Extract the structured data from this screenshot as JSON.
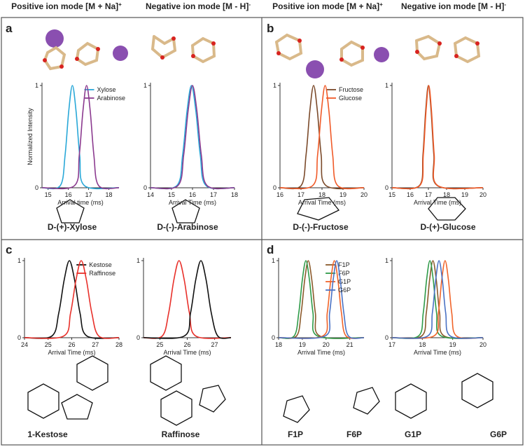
{
  "figure": {
    "headers": [
      {
        "text": "Positive ion mode [M + Na]",
        "sup": "+"
      },
      {
        "text": "Negative ion mode [M - H]",
        "sup": "-"
      },
      {
        "text": "Positive ion mode [M + Na]",
        "sup": "+"
      },
      {
        "text": "Negative ion mode [M - H]",
        "sup": "-"
      }
    ],
    "panel_labels": [
      "a",
      "b",
      "c",
      "d"
    ],
    "molecules": [
      {
        "name": "D-(+)-Xylose",
        "color": "#29a8d8"
      },
      {
        "name": "D-(-)-Arabinose",
        "color": "#8b3a8f"
      },
      {
        "name": "D-(-)-Fructose",
        "color": "#7b4a2a"
      },
      {
        "name": "D-(+)-Glucose",
        "color": "#f05a28"
      },
      {
        "name": "1-Kestose",
        "color": "#111111"
      },
      {
        "name": "Raffinose",
        "color": "#e8302a"
      },
      {
        "name": "F1P",
        "color": "#8b5a2b"
      },
      {
        "name": "F6P",
        "color": "#2e9a48"
      },
      {
        "name": "G1P",
        "color": "#f0642a"
      },
      {
        "name": "G6P",
        "color": "#4a72c4"
      }
    ]
  },
  "chart_data": [
    {
      "type": "line",
      "xlabel": "Arrival time (ms)",
      "ylabel": "Normalized Intensity",
      "xlim": [
        14.7,
        18.5
      ],
      "xticks": [
        15,
        16,
        17,
        18
      ],
      "ylim": [
        0,
        1
      ],
      "yticks": [
        0,
        1
      ],
      "legend": true,
      "series": [
        {
          "name": "Xylose",
          "color": "#29a8d8",
          "x": [
            14.7,
            15.6,
            15.84,
            16.02,
            16.2,
            16.38,
            16.56,
            16.8,
            18.5
          ],
          "values": [
            0,
            0.02,
            0.32,
            0.75,
            1,
            0.75,
            0.32,
            0.02,
            0
          ]
        },
        {
          "name": "Arabinose",
          "color": "#8b3a8f",
          "x": [
            14.7,
            16.3,
            16.54,
            16.72,
            16.9,
            17.08,
            17.26,
            17.5,
            18.5
          ],
          "values": [
            0,
            0.02,
            0.32,
            0.75,
            1,
            0.75,
            0.32,
            0.02,
            0
          ]
        }
      ]
    },
    {
      "type": "line",
      "xlabel": "Arrival Time (ms)",
      "xlim": [
        14,
        18
      ],
      "xticks": [
        14,
        15,
        16,
        17,
        18
      ],
      "ylim": [
        0,
        1
      ],
      "yticks": [
        0,
        1
      ],
      "legend": false,
      "series": [
        {
          "color": "#29a8d8",
          "x": [
            14,
            15.25,
            15.53,
            15.74,
            15.95,
            16.16,
            16.37,
            16.65,
            18
          ],
          "values": [
            0,
            0.02,
            0.32,
            0.75,
            1,
            0.75,
            0.32,
            0.02,
            0
          ]
        },
        {
          "color": "#8b3a8f",
          "x": [
            14,
            15.3,
            15.58,
            15.79,
            16.0,
            16.21,
            16.42,
            16.7,
            18
          ],
          "values": [
            0,
            0.02,
            0.32,
            0.75,
            1,
            0.75,
            0.32,
            0.02,
            0
          ]
        }
      ]
    },
    {
      "type": "line",
      "xlabel": "Arrival Time (ms)",
      "xlim": [
        16,
        20
      ],
      "xticks": [
        16,
        17,
        18,
        19,
        20
      ],
      "ylim": [
        0,
        1
      ],
      "yticks": [
        0,
        1
      ],
      "legend": true,
      "series": [
        {
          "name": "Fructose",
          "color": "#7b4a2a",
          "x": [
            16,
            17.0,
            17.24,
            17.42,
            17.6,
            17.78,
            17.96,
            18.2,
            20
          ],
          "values": [
            0,
            0.02,
            0.32,
            0.75,
            1,
            0.75,
            0.32,
            0.02,
            0
          ]
        },
        {
          "name": "Glucose",
          "color": "#f05a28",
          "x": [
            16,
            17.55,
            17.79,
            17.97,
            18.15,
            18.33,
            18.51,
            18.75,
            20
          ],
          "values": [
            0,
            0.02,
            0.32,
            0.75,
            1,
            0.75,
            0.32,
            0.02,
            0
          ]
        }
      ]
    },
    {
      "type": "line",
      "xlabel": "Arrival Time (ms)",
      "xlim": [
        15,
        20
      ],
      "xticks": [
        15,
        16,
        17,
        18,
        19,
        20
      ],
      "ylim": [
        0,
        1
      ],
      "yticks": [
        0,
        1
      ],
      "legend": false,
      "series": [
        {
          "color": "#7b4a2a",
          "x": [
            15,
            16.5,
            16.7,
            16.85,
            17.0,
            17.15,
            17.3,
            17.5,
            20
          ],
          "values": [
            0,
            0.02,
            0.32,
            0.75,
            1,
            0.75,
            0.32,
            0.02,
            0
          ]
        },
        {
          "color": "#f05a28",
          "x": [
            15,
            16.52,
            16.72,
            16.87,
            17.02,
            17.17,
            17.32,
            17.52,
            20
          ],
          "values": [
            0,
            0.02,
            0.32,
            0.75,
            1,
            0.75,
            0.32,
            0.02,
            0
          ]
        }
      ]
    },
    {
      "type": "line",
      "xlabel": "Arrival Time (ms)",
      "xlim": [
        24,
        28
      ],
      "xticks": [
        24,
        25,
        26,
        27,
        28
      ],
      "ylim": [
        0,
        1
      ],
      "yticks": [
        0,
        1
      ],
      "legend": true,
      "series": [
        {
          "name": "Kestose",
          "color": "#111111",
          "x": [
            24,
            25.15,
            25.45,
            25.68,
            25.9,
            26.12,
            26.35,
            26.65,
            28
          ],
          "values": [
            0,
            0.02,
            0.32,
            0.75,
            1,
            0.75,
            0.32,
            0.02,
            0
          ]
        },
        {
          "name": "Raffinose",
          "color": "#e8302a",
          "x": [
            24,
            25.65,
            25.95,
            26.18,
            26.4,
            26.62,
            26.85,
            27.15,
            28
          ],
          "values": [
            0,
            0.02,
            0.32,
            0.75,
            1,
            0.75,
            0.32,
            0.02,
            0
          ]
        }
      ]
    },
    {
      "type": "line",
      "xlabel": "Arrival Time (ms)",
      "xlim": [
        24.4,
        27.6
      ],
      "xticks": [
        25,
        26,
        27
      ],
      "ylim": [
        0,
        1
      ],
      "yticks": [
        0,
        1
      ],
      "legend": false,
      "series": [
        {
          "color": "#e8302a",
          "x": [
            24.4,
            25.08,
            25.32,
            25.51,
            25.7,
            25.89,
            26.08,
            26.32,
            27.6
          ],
          "values": [
            0,
            0.02,
            0.32,
            0.75,
            1,
            0.75,
            0.32,
            0.02,
            0
          ]
        },
        {
          "color": "#111111",
          "x": [
            24.4,
            25.88,
            26.12,
            26.31,
            26.5,
            26.69,
            26.88,
            27.12,
            27.6
          ],
          "values": [
            0,
            0.02,
            0.32,
            0.75,
            1,
            0.75,
            0.32,
            0.02,
            0
          ]
        }
      ]
    },
    {
      "type": "line",
      "xlabel": "Arrival Time (ms)",
      "xlim": [
        18,
        21.6
      ],
      "xticks": [
        18,
        19,
        20,
        21
      ],
      "ylim": [
        0,
        1
      ],
      "yticks": [
        0,
        1
      ],
      "legend": true,
      "series": [
        {
          "name": "F1P",
          "color": "#8b5a2b",
          "x": [
            18,
            18.75,
            18.95,
            19.1,
            19.25,
            19.4,
            19.55,
            19.75,
            21.6
          ],
          "values": [
            0,
            0.02,
            0.32,
            0.75,
            1,
            0.75,
            0.32,
            0.02,
            0
          ]
        },
        {
          "name": "F6P",
          "color": "#2e9a48",
          "x": [
            18,
            18.65,
            18.85,
            19.0,
            19.15,
            19.3,
            19.45,
            19.65,
            21.6
          ],
          "values": [
            0,
            0.02,
            0.32,
            0.75,
            1,
            0.75,
            0.32,
            0.02,
            0
          ]
        },
        {
          "name": "G1P",
          "color": "#f0642a",
          "x": [
            18,
            19.85,
            20.05,
            20.2,
            20.35,
            20.5,
            20.65,
            20.85,
            21.6
          ],
          "values": [
            0,
            0.02,
            0.32,
            0.75,
            1,
            0.75,
            0.32,
            0.02,
            0
          ]
        },
        {
          "name": "G6P",
          "color": "#4a72c4",
          "x": [
            18,
            19.95,
            20.15,
            20.3,
            20.45,
            20.6,
            20.75,
            20.95,
            21.6
          ],
          "values": [
            0,
            0.02,
            0.32,
            0.75,
            1,
            0.75,
            0.32,
            0.02,
            0
          ]
        }
      ]
    },
    {
      "type": "line",
      "xlabel": "Arrival Time (ms)",
      "xlim": [
        17,
        20
      ],
      "xticks": [
        17,
        18,
        19,
        20
      ],
      "ylim": [
        0,
        1
      ],
      "yticks": [
        0,
        1
      ],
      "legend": false,
      "series": [
        {
          "color": "#8b5a2b",
          "x": [
            17,
            17.97,
            18.13,
            18.24,
            18.35,
            18.46,
            18.57,
            18.73,
            20
          ],
          "values": [
            0,
            0.02,
            0.32,
            0.75,
            1,
            0.75,
            0.32,
            0.02,
            0
          ]
        },
        {
          "color": "#2e9a48",
          "x": [
            17,
            17.87,
            18.03,
            18.14,
            18.25,
            18.36,
            18.47,
            18.63,
            20
          ],
          "values": [
            0,
            0.02,
            0.32,
            0.75,
            1,
            0.75,
            0.32,
            0.02,
            0
          ]
        },
        {
          "color": "#f0642a",
          "x": [
            17,
            18.37,
            18.53,
            18.64,
            18.75,
            18.86,
            18.97,
            19.13,
            20
          ],
          "values": [
            0,
            0.02,
            0.32,
            0.75,
            1,
            0.75,
            0.32,
            0.02,
            0
          ]
        },
        {
          "color": "#4a72c4",
          "x": [
            17,
            18.17,
            18.33,
            18.44,
            18.55,
            18.66,
            18.77,
            18.93,
            20
          ],
          "values": [
            0,
            0.02,
            0.32,
            0.75,
            1,
            0.75,
            0.32,
            0.02,
            0
          ]
        }
      ]
    }
  ]
}
